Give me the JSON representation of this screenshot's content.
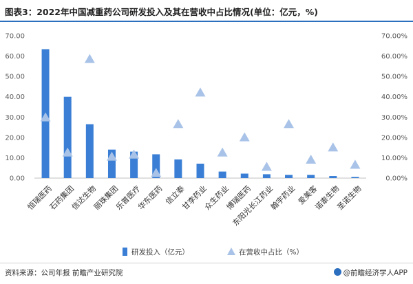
{
  "header": {
    "title": "图表3：2022年中国减重药公司研发投入及其在营收中占比情况(单位：亿元，%)"
  },
  "footer": {
    "source": "资料来源：公司年报 前瞻产业研究院",
    "brand": "@前瞻经济学人APP"
  },
  "colors": {
    "bar": "#3a7fd5",
    "triangle": "#a9c3e8",
    "rule": "#2c6fbf"
  },
  "chart_data": {
    "type": "bar",
    "categories": [
      "恒瑞医药",
      "石药集团",
      "信达生物",
      "丽珠集团",
      "乐普医疗",
      "华东医药",
      "信立泰",
      "甘李药业",
      "众生药业",
      "博瑞医药",
      "东阳光长江药业",
      "翰宇药业",
      "爱美客",
      "诺泰生物",
      "圣诺生物"
    ],
    "series": [
      {
        "name": "研发投入（亿元）",
        "type": "bar",
        "axis": "left",
        "values": [
          63.4,
          40.0,
          26.5,
          14.0,
          13.0,
          11.7,
          9.2,
          7.1,
          3.2,
          2.2,
          1.9,
          1.6,
          1.6,
          1.0,
          0.6
        ]
      },
      {
        "name": "在营收中占比（%）",
        "type": "scatter",
        "marker": "triangle",
        "axis": "right",
        "values": [
          29.8,
          12.5,
          58.5,
          10.5,
          11.5,
          2.5,
          26.5,
          42.0,
          12.5,
          20.0,
          5.5,
          26.5,
          9.0,
          15.0,
          6.5
        ]
      }
    ],
    "y_left": {
      "min": 0,
      "max": 70,
      "ticks": [
        "0.00",
        "10.00",
        "20.00",
        "30.00",
        "40.00",
        "50.00",
        "60.00",
        "70.00"
      ]
    },
    "y_right": {
      "min": 0,
      "max": 70,
      "ticks": [
        "0.00%",
        "10.00%",
        "20.00%",
        "30.00%",
        "40.00%",
        "50.00%",
        "60.00%",
        "70.00%"
      ]
    },
    "grid": false,
    "legend_position": "bottom-center"
  }
}
